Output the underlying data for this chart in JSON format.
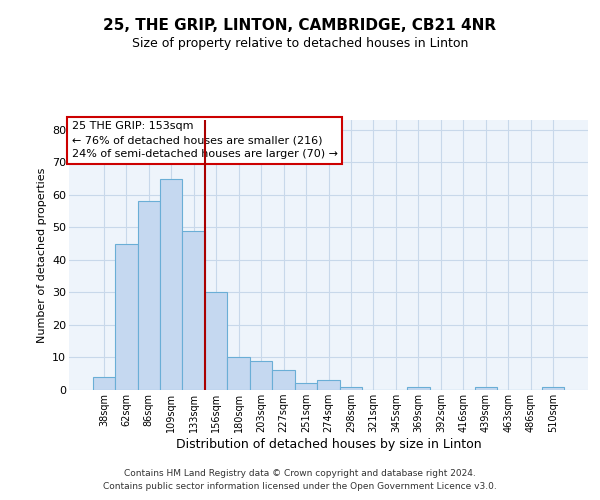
{
  "title": "25, THE GRIP, LINTON, CAMBRIDGE, CB21 4NR",
  "subtitle": "Size of property relative to detached houses in Linton",
  "xlabel": "Distribution of detached houses by size in Linton",
  "ylabel": "Number of detached properties",
  "bar_labels": [
    "38sqm",
    "62sqm",
    "86sqm",
    "109sqm",
    "133sqm",
    "156sqm",
    "180sqm",
    "203sqm",
    "227sqm",
    "251sqm",
    "274sqm",
    "298sqm",
    "321sqm",
    "345sqm",
    "369sqm",
    "392sqm",
    "416sqm",
    "439sqm",
    "463sqm",
    "486sqm",
    "510sqm"
  ],
  "bar_values": [
    4,
    45,
    58,
    65,
    49,
    30,
    10,
    9,
    6,
    2,
    3,
    1,
    0,
    0,
    1,
    0,
    0,
    1,
    0,
    0,
    1
  ],
  "bar_color": "#c5d8f0",
  "bar_edge_color": "#6aaed6",
  "vline_color": "#aa0000",
  "annotation_text_line1": "25 THE GRIP: 153sqm",
  "annotation_text_line2": "← 76% of detached houses are smaller (216)",
  "annotation_text_line3": "24% of semi-detached houses are larger (70) →",
  "annotation_box_color": "white",
  "annotation_box_edge": "#cc0000",
  "ylim": [
    0,
    83
  ],
  "yticks": [
    0,
    10,
    20,
    30,
    40,
    50,
    60,
    70,
    80
  ],
  "grid_color": "#c8d8ea",
  "bg_color": "#eef4fb",
  "footer1": "Contains HM Land Registry data © Crown copyright and database right 2024.",
  "footer2": "Contains public sector information licensed under the Open Government Licence v3.0."
}
